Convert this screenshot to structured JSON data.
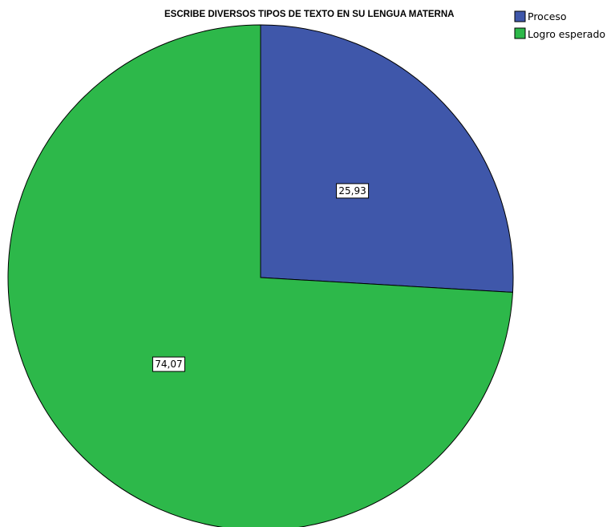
{
  "chart_data": {
    "type": "pie",
    "title": "ESCRIBE DIVERSOS TIPOS DE TEXTO EN SU LENGUA MATERNA",
    "categories": [
      "Proceso",
      "Logro esperado"
    ],
    "values": [
      25.93,
      74.07
    ],
    "value_labels": [
      "25,93",
      "74,07"
    ],
    "colors": [
      "#3f57aa",
      "#2db84a"
    ],
    "start_angle": "12 o'clock",
    "direction": "clockwise",
    "legend_position": "top-right"
  }
}
